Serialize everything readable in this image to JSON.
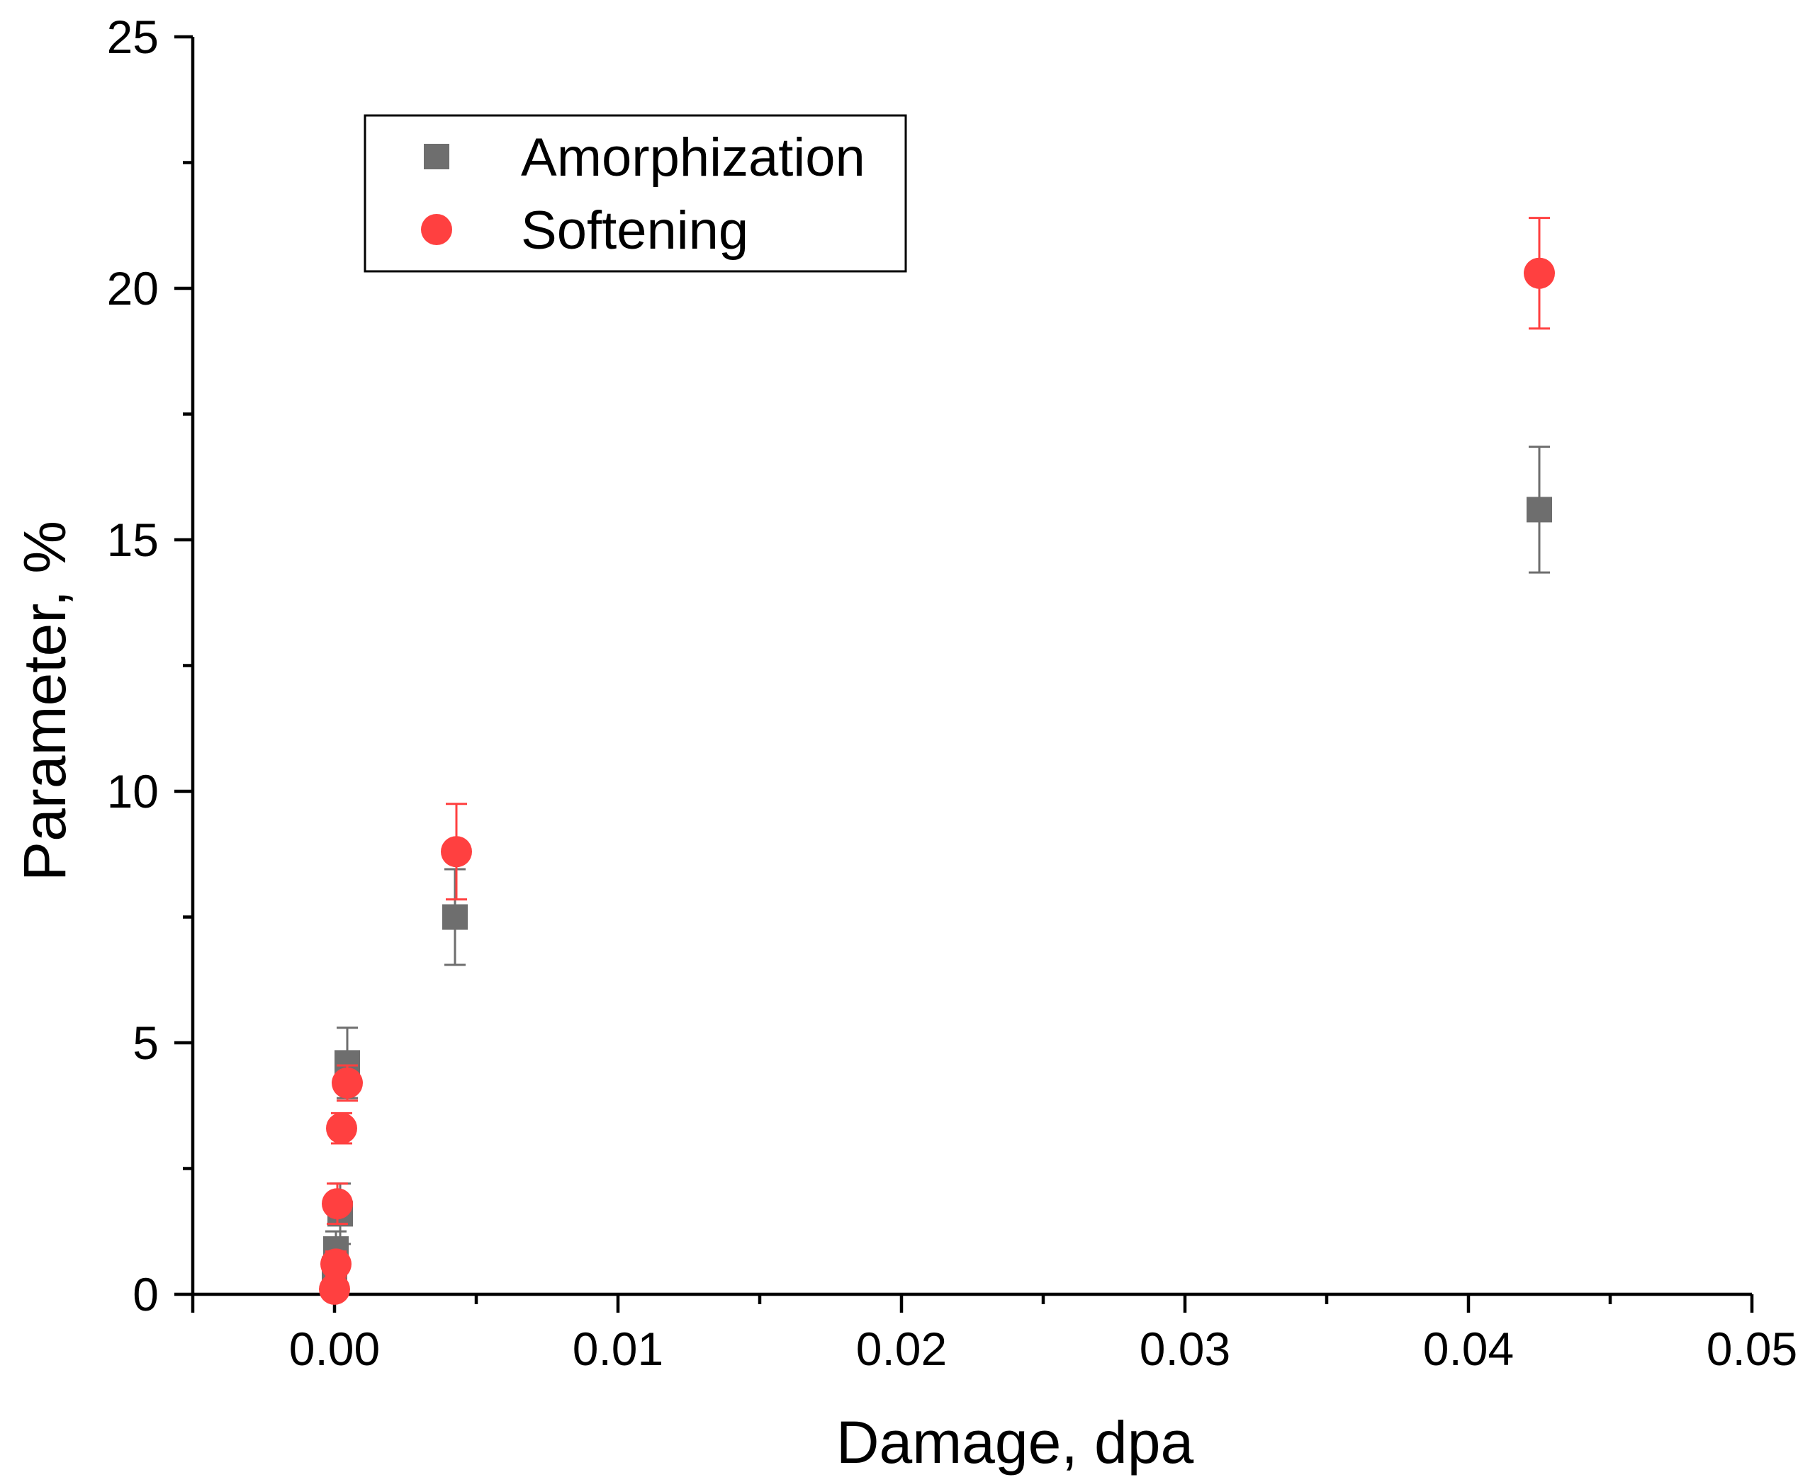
{
  "chart_data": {
    "type": "scatter",
    "title": "",
    "xlabel": "Damage, dpa",
    "ylabel": "Parameter, %",
    "xlim": [
      -0.005,
      0.05
    ],
    "ylim": [
      0,
      25
    ],
    "x_ticks": [
      0.0,
      0.01,
      0.02,
      0.03,
      0.04,
      0.05
    ],
    "x_tick_labels": [
      "0.00",
      "0.01",
      "0.02",
      "0.03",
      "0.04",
      "0.05"
    ],
    "x_minor_ticks": [
      -0.005,
      0.005,
      0.015,
      0.025,
      0.035,
      0.045
    ],
    "y_ticks": [
      0,
      5,
      10,
      15,
      20,
      25
    ],
    "y_tick_labels": [
      "0",
      "5",
      "10",
      "15",
      "20",
      "25"
    ],
    "y_minor_ticks": [
      2.5,
      7.5,
      12.5,
      17.5,
      22.5
    ],
    "grid": false,
    "legend_position": "top-left",
    "series": [
      {
        "name": "Amorphization",
        "marker": "square",
        "color": "#6e6e6e",
        "points": [
          {
            "x": 0.0,
            "y": 0.5,
            "err": 0.3
          },
          {
            "x": 5e-05,
            "y": 0.9,
            "err": 0.35
          },
          {
            "x": 0.0002,
            "y": 1.6,
            "err": 0.6
          },
          {
            "x": 0.00045,
            "y": 4.6,
            "err": 0.7
          },
          {
            "x": 0.00425,
            "y": 7.5,
            "err": 0.95
          },
          {
            "x": 0.0425,
            "y": 15.6,
            "err": 1.25
          }
        ]
      },
      {
        "name": "Softening",
        "marker": "circle",
        "color": "#ff4040",
        "points": [
          {
            "x": 0.0,
            "y": 0.1,
            "err": 0.15
          },
          {
            "x": 5e-05,
            "y": 0.6,
            "err": 0.25
          },
          {
            "x": 0.0001,
            "y": 1.8,
            "err": 0.4
          },
          {
            "x": 0.00025,
            "y": 3.3,
            "err": 0.3
          },
          {
            "x": 0.00045,
            "y": 4.2,
            "err": 0.35
          },
          {
            "x": 0.0043,
            "y": 8.8,
            "err": 0.95
          },
          {
            "x": 0.0425,
            "y": 20.3,
            "err": 1.1
          }
        ]
      }
    ]
  }
}
